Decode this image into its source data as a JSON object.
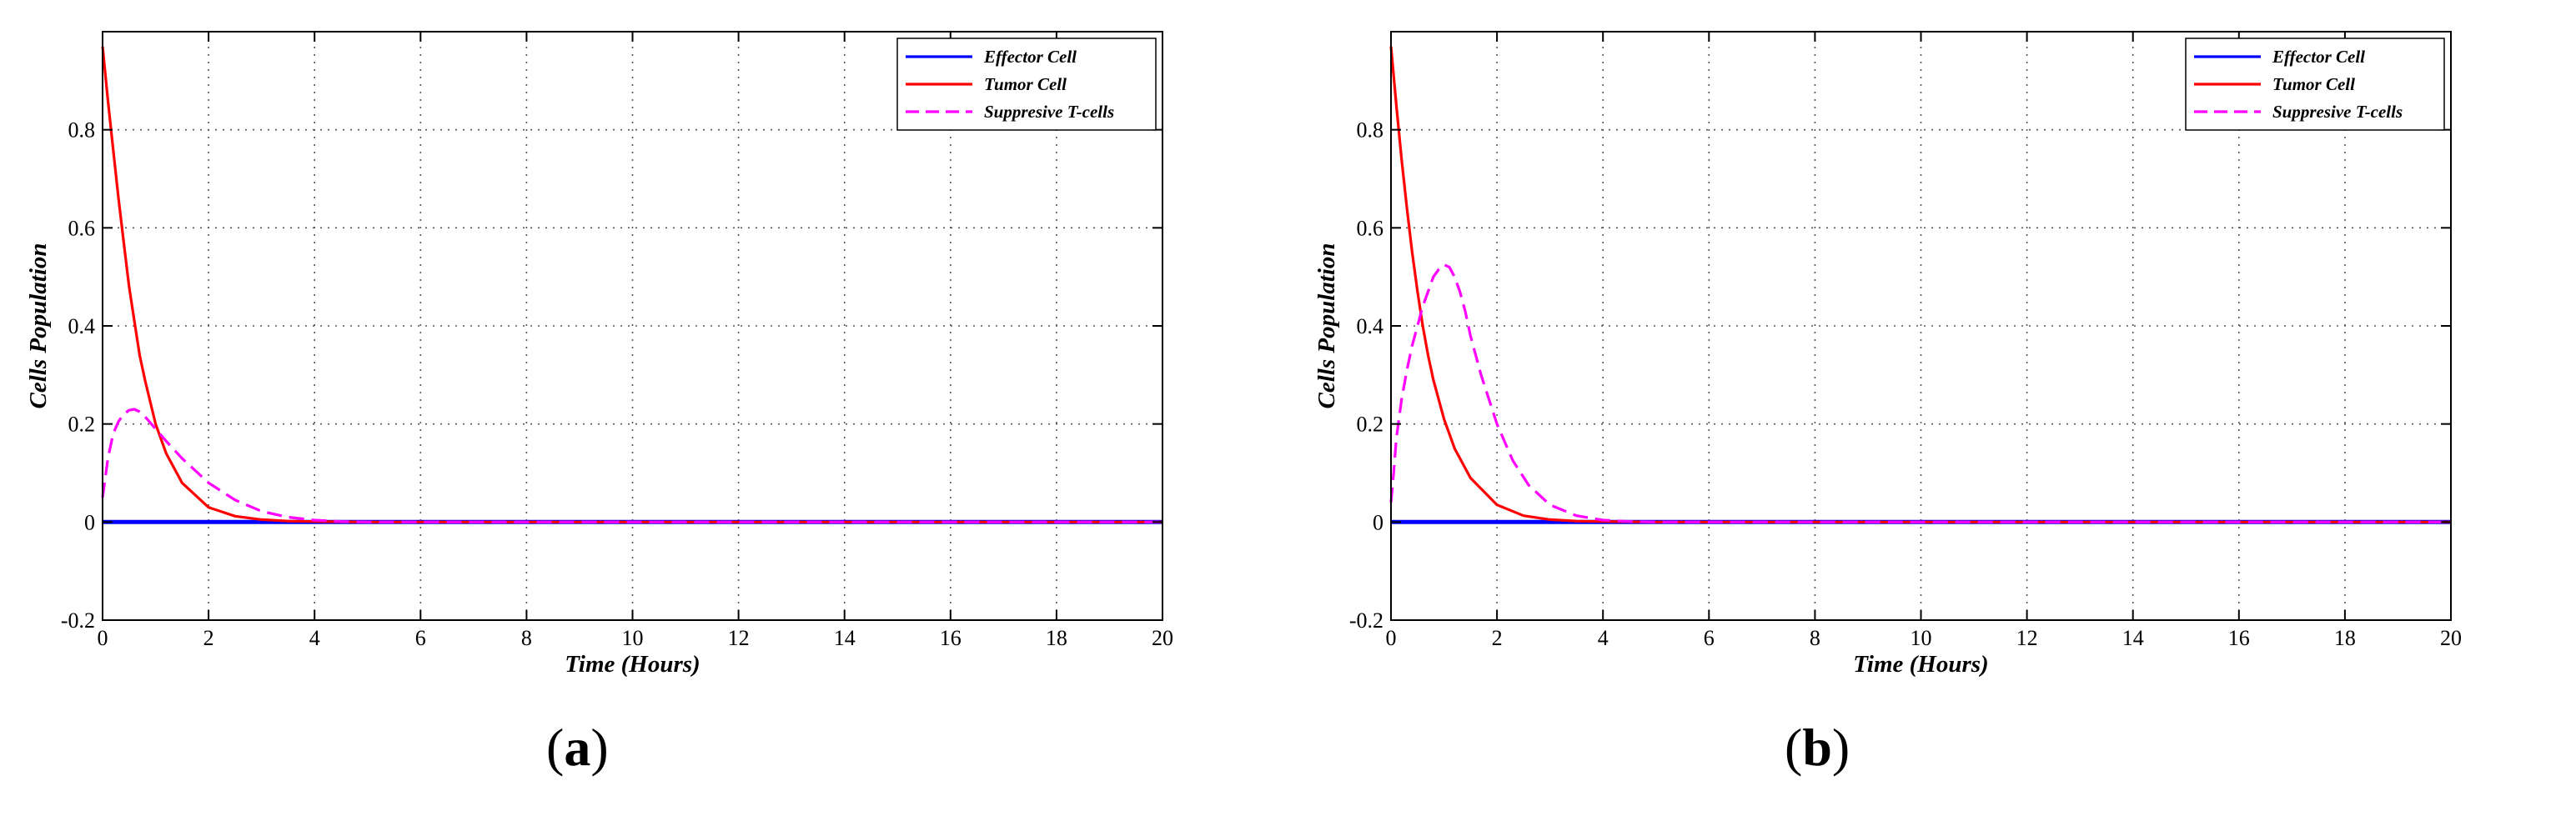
{
  "chart_data": [
    {
      "id": "a",
      "type": "line",
      "caption_letter": "a",
      "xlabel": "Time (Hours)",
      "ylabel": "Cells Population",
      "xlim": [
        0,
        20
      ],
      "ylim": [
        -0.2,
        1.0
      ],
      "xticks": [
        0,
        2,
        4,
        6,
        8,
        10,
        12,
        14,
        16,
        18,
        20
      ],
      "yticks": [
        -0.2,
        0,
        0.2,
        0.4,
        0.6,
        0.8
      ],
      "grid": true,
      "legend_position": "top-right",
      "series": [
        {
          "name": "Effector Cell",
          "color": "#0000ff",
          "style": "solid",
          "x": [
            0,
            20
          ],
          "y": [
            0,
            0
          ]
        },
        {
          "name": "Tumor Cell",
          "color": "#ff0000",
          "style": "solid",
          "x": [
            0,
            0.1,
            0.2,
            0.3,
            0.4,
            0.5,
            0.6,
            0.7,
            0.8,
            1.0,
            1.2,
            1.5,
            2.0,
            2.5,
            3.0,
            3.5,
            4.0,
            5.0,
            20
          ],
          "y": [
            0.97,
            0.86,
            0.76,
            0.66,
            0.57,
            0.48,
            0.41,
            0.34,
            0.29,
            0.2,
            0.14,
            0.08,
            0.03,
            0.012,
            0.005,
            0.002,
            0.001,
            0,
            0
          ]
        },
        {
          "name": "Suppresive T-cells",
          "color": "#ff00ff",
          "style": "dashed",
          "x": [
            0,
            0.05,
            0.1,
            0.2,
            0.3,
            0.4,
            0.5,
            0.6,
            0.7,
            0.8,
            1.0,
            1.2,
            1.5,
            2.0,
            2.5,
            3.0,
            3.5,
            4.0,
            4.5,
            5.0,
            20
          ],
          "y": [
            0.05,
            0.09,
            0.13,
            0.18,
            0.205,
            0.22,
            0.228,
            0.23,
            0.225,
            0.215,
            0.19,
            0.165,
            0.13,
            0.08,
            0.045,
            0.022,
            0.01,
            0.004,
            0.001,
            0,
            0
          ]
        }
      ]
    },
    {
      "id": "b",
      "type": "line",
      "caption_letter": "b",
      "xlabel": "Time (Hours)",
      "ylabel": "Cells Population",
      "xlim": [
        0,
        20
      ],
      "ylim": [
        -0.2,
        1.0
      ],
      "xticks": [
        0,
        2,
        4,
        6,
        8,
        10,
        12,
        14,
        16,
        18,
        20
      ],
      "yticks": [
        -0.2,
        0,
        0.2,
        0.4,
        0.6,
        0.8
      ],
      "grid": true,
      "legend_position": "top-right",
      "series": [
        {
          "name": "Effector Cell",
          "color": "#0000ff",
          "style": "solid",
          "x": [
            0,
            20
          ],
          "y": [
            0,
            0
          ]
        },
        {
          "name": "Tumor Cell",
          "color": "#ff0000",
          "style": "solid",
          "x": [
            0,
            0.1,
            0.2,
            0.3,
            0.4,
            0.5,
            0.6,
            0.7,
            0.8,
            1.0,
            1.2,
            1.5,
            2.0,
            2.5,
            3.0,
            3.5,
            4.0,
            5.0,
            20
          ],
          "y": [
            0.97,
            0.85,
            0.74,
            0.64,
            0.55,
            0.47,
            0.4,
            0.34,
            0.29,
            0.21,
            0.15,
            0.09,
            0.035,
            0.013,
            0.005,
            0.002,
            0.001,
            0,
            0
          ]
        },
        {
          "name": "Suppresive T-cells",
          "color": "#ff00ff",
          "style": "dashed",
          "x": [
            0,
            0.05,
            0.1,
            0.2,
            0.3,
            0.4,
            0.5,
            0.6,
            0.7,
            0.8,
            0.9,
            1.0,
            1.1,
            1.2,
            1.3,
            1.4,
            1.5,
            1.7,
            2.0,
            2.3,
            2.6,
            3.0,
            3.5,
            4.0,
            4.5,
            5.0,
            20
          ],
          "y": [
            0.04,
            0.1,
            0.17,
            0.25,
            0.31,
            0.36,
            0.4,
            0.44,
            0.47,
            0.5,
            0.515,
            0.525,
            0.52,
            0.5,
            0.47,
            0.43,
            0.38,
            0.3,
            0.2,
            0.125,
            0.075,
            0.035,
            0.013,
            0.004,
            0.001,
            0,
            0
          ]
        }
      ]
    }
  ]
}
